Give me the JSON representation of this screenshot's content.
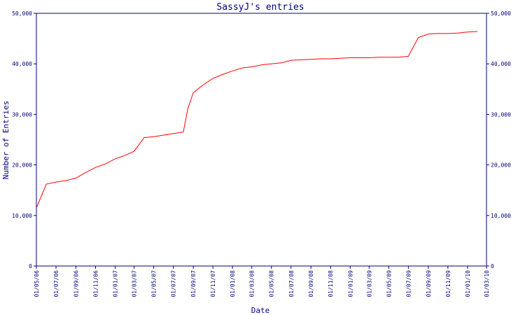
{
  "chart_data": {
    "type": "line",
    "title": "SassyJ's entries",
    "xlabel": "Date",
    "ylabel": "Number of Entries",
    "ylim": [
      0,
      50000
    ],
    "xlim": [
      "2006-05-01",
      "2010-03-01"
    ],
    "y_ticks": [
      0,
      10000,
      20000,
      30000,
      40000,
      50000
    ],
    "y_tick_labels": [
      "0",
      "10,000",
      "20,000",
      "30,000",
      "40,000",
      "50,000"
    ],
    "x_ticks": [
      "2006-05-01",
      "2006-07-01",
      "2006-09-01",
      "2006-11-01",
      "2007-01-01",
      "2007-03-01",
      "2007-05-01",
      "2007-07-01",
      "2007-09-01",
      "2007-11-01",
      "2008-01-01",
      "2008-03-01",
      "2008-05-01",
      "2008-07-01",
      "2008-09-01",
      "2008-11-01",
      "2009-01-01",
      "2009-03-01",
      "2009-05-01",
      "2009-07-01",
      "2009-09-01",
      "2009-11-01",
      "2010-01-01",
      "2010-03-01"
    ],
    "x_tick_labels": [
      "01/05/06",
      "01/07/06",
      "01/09/06",
      "01/11/06",
      "01/01/07",
      "01/03/07",
      "01/05/07",
      "01/07/07",
      "01/09/07",
      "01/11/07",
      "01/01/08",
      "01/03/08",
      "01/05/08",
      "01/07/08",
      "01/09/08",
      "01/11/08",
      "01/01/09",
      "01/03/09",
      "01/05/09",
      "01/07/09",
      "01/09/09",
      "01/11/09",
      "01/01/10",
      "01/03/10"
    ],
    "grid": false,
    "line_color": "#ff0000",
    "axis_color": "#000080",
    "series": [
      {
        "x": [
          "2006-05-01",
          "2006-06-01",
          "2006-07-01",
          "2006-08-01",
          "2006-09-01",
          "2006-10-01",
          "2006-11-01",
          "2006-12-01",
          "2007-01-01",
          "2007-02-01",
          "2007-03-01",
          "2007-04-01",
          "2007-05-01",
          "2007-06-01",
          "2007-07-01",
          "2007-08-01",
          "2007-08-15",
          "2007-09-01",
          "2007-10-01",
          "2007-11-01",
          "2007-12-01",
          "2008-01-01",
          "2008-02-01",
          "2008-03-01",
          "2008-04-01",
          "2008-05-01",
          "2008-06-01",
          "2008-07-01",
          "2008-08-01",
          "2008-09-01",
          "2008-10-01",
          "2008-11-01",
          "2008-12-01",
          "2009-01-01",
          "2009-02-01",
          "2009-03-01",
          "2009-04-01",
          "2009-05-01",
          "2009-06-01",
          "2009-07-01",
          "2009-08-01",
          "2009-09-01",
          "2009-10-01",
          "2009-11-01",
          "2009-12-01",
          "2010-01-01",
          "2010-02-01"
        ],
        "values": [
          11500,
          16200,
          16600,
          16900,
          17400,
          18500,
          19500,
          20200,
          21200,
          21900,
          22700,
          25400,
          25600,
          25900,
          26200,
          26500,
          31100,
          34300,
          35800,
          37100,
          37900,
          38600,
          39200,
          39400,
          39800,
          40000,
          40200,
          40700,
          40800,
          40900,
          41000,
          41000,
          41100,
          41200,
          41200,
          41200,
          41300,
          41300,
          41300,
          41500,
          45200,
          45900,
          46000,
          46000,
          46100,
          46300,
          46400
        ]
      }
    ]
  }
}
